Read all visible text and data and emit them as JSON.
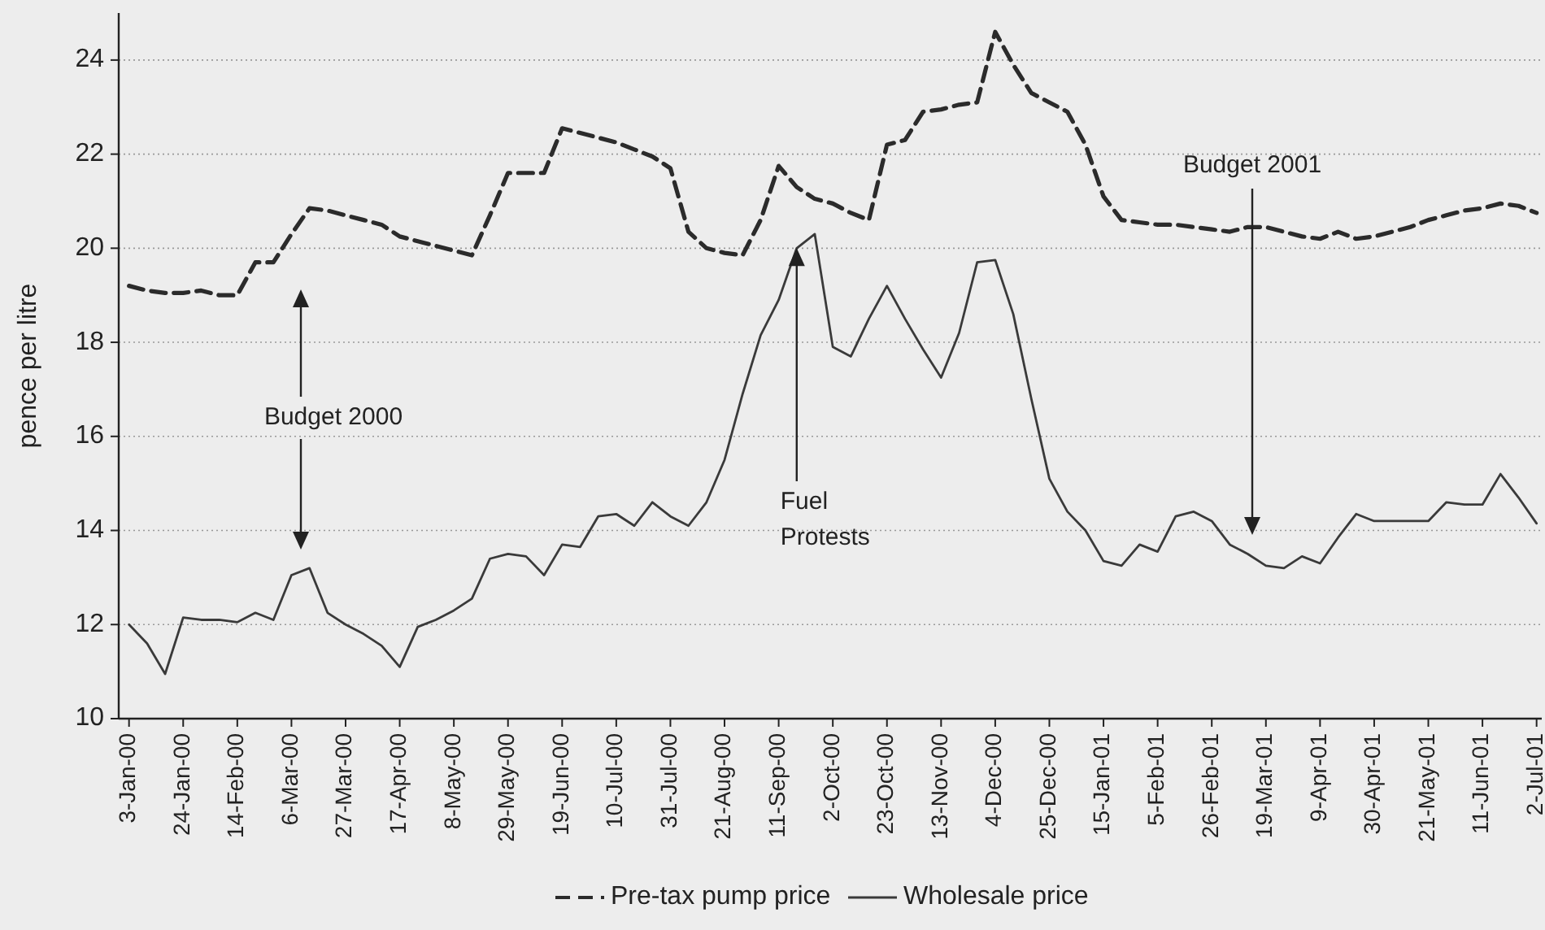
{
  "chart_data": {
    "type": "line",
    "ylabel": "pence per litre",
    "x": [
      "2000-01-03",
      "2000-01-10",
      "2000-01-17",
      "2000-01-24",
      "2000-01-31",
      "2000-02-07",
      "2000-02-14",
      "2000-02-21",
      "2000-02-28",
      "2000-03-06",
      "2000-03-13",
      "2000-03-20",
      "2000-03-27",
      "2000-04-03",
      "2000-04-10",
      "2000-04-17",
      "2000-04-24",
      "2000-05-01",
      "2000-05-08",
      "2000-05-15",
      "2000-05-22",
      "2000-05-29",
      "2000-06-05",
      "2000-06-12",
      "2000-06-19",
      "2000-06-26",
      "2000-07-03",
      "2000-07-10",
      "2000-07-17",
      "2000-07-24",
      "2000-07-31",
      "2000-08-07",
      "2000-08-14",
      "2000-08-21",
      "2000-08-28",
      "2000-09-04",
      "2000-09-11",
      "2000-09-18",
      "2000-09-25",
      "2000-10-02",
      "2000-10-09",
      "2000-10-16",
      "2000-10-23",
      "2000-10-30",
      "2000-11-06",
      "2000-11-13",
      "2000-11-20",
      "2000-11-27",
      "2000-12-04",
      "2000-12-11",
      "2000-12-18",
      "2000-12-25",
      "2001-01-01",
      "2001-01-08",
      "2001-01-15",
      "2001-01-22",
      "2001-01-29",
      "2001-02-05",
      "2001-02-12",
      "2001-02-19",
      "2001-02-26",
      "2001-03-05",
      "2001-03-12",
      "2001-03-19",
      "2001-03-26",
      "2001-04-02",
      "2001-04-09",
      "2001-04-16",
      "2001-04-23",
      "2001-04-30",
      "2001-05-07",
      "2001-05-14",
      "2001-05-21",
      "2001-05-28",
      "2001-06-04",
      "2001-06-11",
      "2001-06-18",
      "2001-06-25",
      "2001-07-02"
    ],
    "series": [
      {
        "name": "Pre-tax pump price",
        "color": "#2b2b2b",
        "line_style": "dashed",
        "values": [
          19.2,
          19.1,
          19.05,
          19.05,
          19.1,
          19.0,
          19.0,
          19.7,
          19.7,
          20.3,
          20.85,
          20.8,
          20.7,
          20.6,
          20.5,
          20.25,
          20.15,
          20.05,
          19.95,
          19.85,
          20.7,
          21.6,
          21.6,
          21.6,
          22.55,
          22.45,
          22.35,
          22.25,
          22.1,
          21.95,
          21.7,
          20.35,
          20.0,
          19.9,
          19.85,
          20.6,
          21.75,
          21.3,
          21.05,
          20.95,
          20.75,
          20.6,
          22.2,
          22.3,
          22.9,
          22.95,
          23.05,
          23.1,
          24.6,
          23.9,
          23.3,
          23.1,
          22.9,
          22.2,
          21.1,
          20.6,
          20.55,
          20.5,
          20.5,
          20.45,
          20.4,
          20.35,
          20.45,
          20.45,
          20.35,
          20.25,
          20.2,
          20.35,
          20.2,
          20.25,
          20.35,
          20.45,
          20.6,
          20.7,
          20.8,
          20.85,
          20.95,
          20.9,
          20.75
        ]
      },
      {
        "name": "Wholesale price",
        "color": "#3a3a3a",
        "line_style": "solid",
        "values": [
          12.0,
          11.6,
          10.95,
          12.15,
          12.1,
          12.1,
          12.05,
          12.25,
          12.1,
          13.05,
          13.2,
          12.25,
          12.0,
          11.8,
          11.55,
          11.1,
          11.95,
          12.1,
          12.3,
          12.55,
          13.4,
          13.5,
          13.45,
          13.05,
          13.7,
          13.65,
          14.3,
          14.35,
          14.1,
          14.6,
          14.3,
          14.1,
          14.6,
          15.5,
          16.9,
          18.15,
          18.9,
          20.0,
          20.3,
          17.9,
          17.7,
          18.5,
          19.2,
          18.5,
          17.85,
          17.25,
          18.2,
          19.7,
          19.75,
          18.6,
          16.8,
          15.1,
          14.4,
          14.0,
          13.35,
          13.25,
          13.7,
          13.55,
          14.3,
          14.4,
          14.2,
          13.7,
          13.5,
          13.25,
          13.2,
          13.45,
          13.3,
          13.85,
          14.35,
          14.2,
          14.2,
          14.2,
          14.2,
          14.6,
          14.55,
          14.55,
          15.2,
          14.7,
          14.15
        ]
      }
    ],
    "xlim": [
      "1999-12-30",
      "2001-07-04"
    ],
    "xticks": [
      {
        "value": "2000-01-03",
        "label": "3-Jan-00"
      },
      {
        "value": "2000-01-24",
        "label": "24-Jan-00"
      },
      {
        "value": "2000-02-14",
        "label": "14-Feb-00"
      },
      {
        "value": "2000-03-06",
        "label": "6-Mar-00"
      },
      {
        "value": "2000-03-27",
        "label": "27-Mar-00"
      },
      {
        "value": "2000-04-17",
        "label": "17-Apr-00"
      },
      {
        "value": "2000-05-08",
        "label": "8-May-00"
      },
      {
        "value": "2000-05-29",
        "label": "29-May-00"
      },
      {
        "value": "2000-06-19",
        "label": "19-Jun-00"
      },
      {
        "value": "2000-07-10",
        "label": "10-Jul-00"
      },
      {
        "value": "2000-07-31",
        "label": "31-Jul-00"
      },
      {
        "value": "2000-08-21",
        "label": "21-Aug-00"
      },
      {
        "value": "2000-09-11",
        "label": "11-Sep-00"
      },
      {
        "value": "2000-10-02",
        "label": "2-Oct-00"
      },
      {
        "value": "2000-10-23",
        "label": "23-Oct-00"
      },
      {
        "value": "2000-11-13",
        "label": "13-Nov-00"
      },
      {
        "value": "2000-12-04",
        "label": "4-Dec-00"
      },
      {
        "value": "2000-12-25",
        "label": "25-Dec-00"
      },
      {
        "value": "2001-01-15",
        "label": "15-Jan-01"
      },
      {
        "value": "2001-02-05",
        "label": "5-Feb-01"
      },
      {
        "value": "2001-02-26",
        "label": "26-Feb-01"
      },
      {
        "value": "2001-03-19",
        "label": "19-Mar-01"
      },
      {
        "value": "2001-04-09",
        "label": "9-Apr-01"
      },
      {
        "value": "2001-04-30",
        "label": "30-Apr-01"
      },
      {
        "value": "2001-05-21",
        "label": "21-May-01"
      },
      {
        "value": "2001-06-11",
        "label": "11-Jun-01"
      },
      {
        "value": "2001-07-02",
        "label": "2-Jul-01"
      }
    ],
    "ylim": [
      10,
      25
    ],
    "yticks": [
      10,
      12,
      14,
      16,
      18,
      20,
      22,
      24
    ],
    "grid": "y",
    "legend": "bottom",
    "marker": "none",
    "annotations": [
      "Budget 2000",
      {
        "text": "Fuel Protests",
        "x": "2000-09-18",
        "y": 20.0
      },
      "Budget 2001"
    ]
  }
}
